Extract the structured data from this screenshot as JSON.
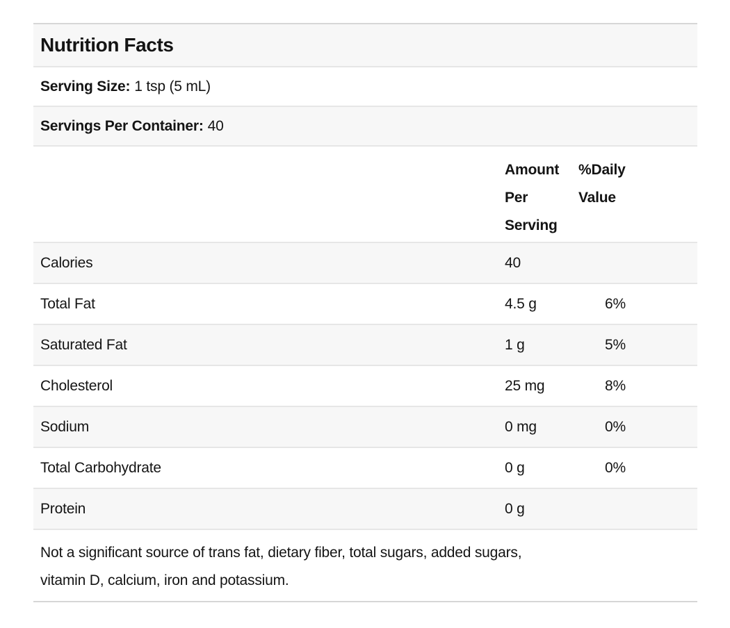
{
  "colors": {
    "stripe_gray": "#f7f7f7",
    "row_border": "#e6e6e6",
    "outer_border": "#d6d6d6",
    "text": "#141414",
    "page_background": "#ffffff"
  },
  "table": {
    "title": "Nutrition Facts",
    "serving_size": {
      "label": "Serving Size:",
      "value": "1 tsp (5 mL)"
    },
    "servings_per_container": {
      "label": "Servings Per Container:",
      "value": "40"
    },
    "columns": {
      "amount": "Amount Per Serving",
      "daily_value": "%Daily Value"
    },
    "rows": [
      {
        "label": "Calories",
        "amount": "40",
        "dv": ""
      },
      {
        "label": "Total Fat",
        "amount": "4.5 g",
        "dv": "6%"
      },
      {
        "label": "Saturated Fat",
        "amount": "1 g",
        "dv": "5%"
      },
      {
        "label": "Cholesterol",
        "amount": "25 mg",
        "dv": "8%"
      },
      {
        "label": "Sodium",
        "amount": "0 mg",
        "dv": "0%"
      },
      {
        "label": "Total Carbohydrate",
        "amount": "0 g",
        "dv": "0%"
      },
      {
        "label": "Protein",
        "amount": "0 g",
        "dv": ""
      }
    ],
    "footnote_lines": [
      "Not a significant source of trans fat, dietary fiber, total sugars, added sugars,",
      "vitamin D, calcium, iron and potassium."
    ]
  }
}
